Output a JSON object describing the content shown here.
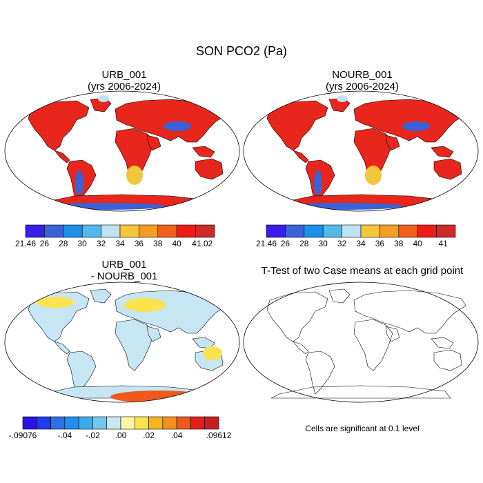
{
  "title": "SON PCO2 (Pa)",
  "panels": {
    "urb": {
      "title": "URB_001",
      "subtitle": "(yrs 2006-2024)"
    },
    "nourb": {
      "title": "NOURB_001",
      "subtitle": "(yrs 2006-2024)"
    },
    "diff": {
      "title": "URB_001",
      "subtitle": "- NOURB_001"
    },
    "ttest": {
      "title": "T-Test of two Case means at each grid point"
    }
  },
  "colorbars": {
    "urb": {
      "labels": [
        "21.46",
        "26",
        "28",
        "30",
        "32",
        "34",
        "36",
        "38",
        "40",
        "41.02"
      ],
      "colors": [
        "#3a1ee8",
        "#3b62d8",
        "#1c8fe8",
        "#55b8ea",
        "#bfe3f0",
        "#f4c63c",
        "#f39d25",
        "#f35f1a",
        "#ee1c18",
        "#cf2a2a"
      ]
    },
    "nourb": {
      "labels": [
        "21.46",
        "26",
        "28",
        "30",
        "32",
        "34",
        "36",
        "38",
        "40",
        "41"
      ],
      "colors": [
        "#3a1ee8",
        "#3b62d8",
        "#1c8fe8",
        "#55b8ea",
        "#bfe3f0",
        "#f4c63c",
        "#f39d25",
        "#f35f1a",
        "#ee1c18",
        "#cf2a2a"
      ]
    },
    "diff": {
      "labels": [
        "-.09076",
        "-.04",
        "-.02",
        ".00",
        ".02",
        ".04",
        ".09612"
      ],
      "colors": [
        "#2a14e8",
        "#1e3cf0",
        "#2f6fe8",
        "#1f8fef",
        "#3cabee",
        "#74c7ef",
        "#c6e6f3",
        "#fff7a6",
        "#fde34d",
        "#f7b41b",
        "#f38f1c",
        "#ee5a1c",
        "#e21f1a",
        "#c91f22"
      ]
    }
  },
  "note": "Cells are significant at 0.1 level",
  "map_colors": {
    "land_high": "#e8261c",
    "land_mid": "#f37c1e",
    "land_low": "#f4c63c",
    "blue_low": "#3b62d8",
    "blue_pale": "#bfe3f0",
    "diff_land": "#c6e6f3",
    "diff_warm": "#fde34d",
    "diff_hot": "#ee5a1c",
    "outline": "#000000"
  }
}
